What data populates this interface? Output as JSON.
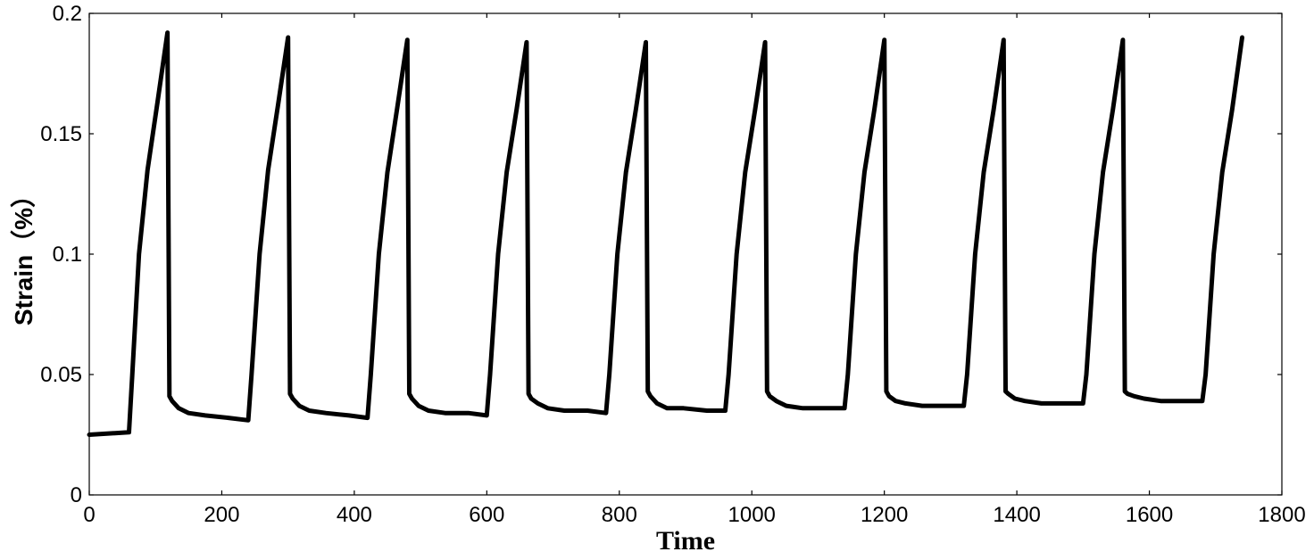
{
  "chart_data": {
    "type": "line",
    "title": "",
    "xlabel": "Time",
    "ylabel": "Strain（%）",
    "xlim": [
      0,
      1800
    ],
    "ylim": [
      0,
      0.2
    ],
    "xticks": [
      0,
      200,
      400,
      600,
      800,
      1000,
      1200,
      1400,
      1600,
      1800
    ],
    "yticks": [
      0,
      0.05,
      0.1,
      0.15,
      0.2
    ],
    "xtick_labels": [
      "0",
      "200",
      "400",
      "600",
      "800",
      "1000",
      "1200",
      "1400",
      "1600",
      "1800"
    ],
    "ytick_labels": [
      "0",
      "0.05",
      "0.1",
      "0.15",
      "0.2"
    ],
    "grid": false,
    "line_color": "#000000",
    "series": [
      {
        "x": [
          0,
          60,
          65,
          75,
          88,
          103,
          118,
          121,
          125,
          135,
          150,
          175,
          210,
          240,
          245,
          257,
          270,
          285,
          300,
          303,
          307,
          317,
          332,
          357,
          392,
          420,
          425,
          437,
          450,
          465,
          480,
          483,
          487,
          497,
          512,
          537,
          572,
          600,
          605,
          617,
          630,
          645,
          660,
          663,
          667,
          677,
          692,
          717,
          752,
          780,
          785,
          797,
          810,
          825,
          840,
          843,
          847,
          857,
          872,
          897,
          932,
          960,
          965,
          977,
          990,
          1005,
          1020,
          1023,
          1027,
          1037,
          1052,
          1077,
          1112,
          1140,
          1145,
          1157,
          1170,
          1185,
          1200,
          1203,
          1207,
          1217,
          1232,
          1257,
          1292,
          1320,
          1325,
          1337,
          1350,
          1365,
          1380,
          1383,
          1387,
          1397,
          1412,
          1437,
          1472,
          1500,
          1505,
          1517,
          1530,
          1545,
          1560,
          1563,
          1567,
          1577,
          1592,
          1617,
          1652,
          1680,
          1685,
          1697,
          1710,
          1725,
          1740
        ],
        "y": [
          0.025,
          0.026,
          0.05,
          0.1,
          0.135,
          0.163,
          0.192,
          0.041,
          0.039,
          0.036,
          0.034,
          0.033,
          0.032,
          0.031,
          0.05,
          0.1,
          0.135,
          0.162,
          0.19,
          0.042,
          0.04,
          0.037,
          0.035,
          0.034,
          0.033,
          0.032,
          0.05,
          0.1,
          0.134,
          0.161,
          0.189,
          0.042,
          0.04,
          0.037,
          0.035,
          0.034,
          0.034,
          0.033,
          0.05,
          0.1,
          0.134,
          0.16,
          0.188,
          0.042,
          0.04,
          0.038,
          0.036,
          0.035,
          0.035,
          0.034,
          0.05,
          0.1,
          0.134,
          0.16,
          0.188,
          0.043,
          0.041,
          0.038,
          0.036,
          0.036,
          0.035,
          0.035,
          0.05,
          0.1,
          0.134,
          0.16,
          0.188,
          0.043,
          0.041,
          0.039,
          0.037,
          0.036,
          0.036,
          0.036,
          0.05,
          0.1,
          0.134,
          0.16,
          0.189,
          0.043,
          0.041,
          0.039,
          0.038,
          0.037,
          0.037,
          0.037,
          0.05,
          0.1,
          0.134,
          0.16,
          0.189,
          0.043,
          0.042,
          0.04,
          0.039,
          0.038,
          0.038,
          0.038,
          0.05,
          0.1,
          0.134,
          0.16,
          0.189,
          0.043,
          0.042,
          0.041,
          0.04,
          0.039,
          0.039,
          0.039,
          0.05,
          0.1,
          0.134,
          0.16,
          0.19
        ]
      }
    ]
  }
}
